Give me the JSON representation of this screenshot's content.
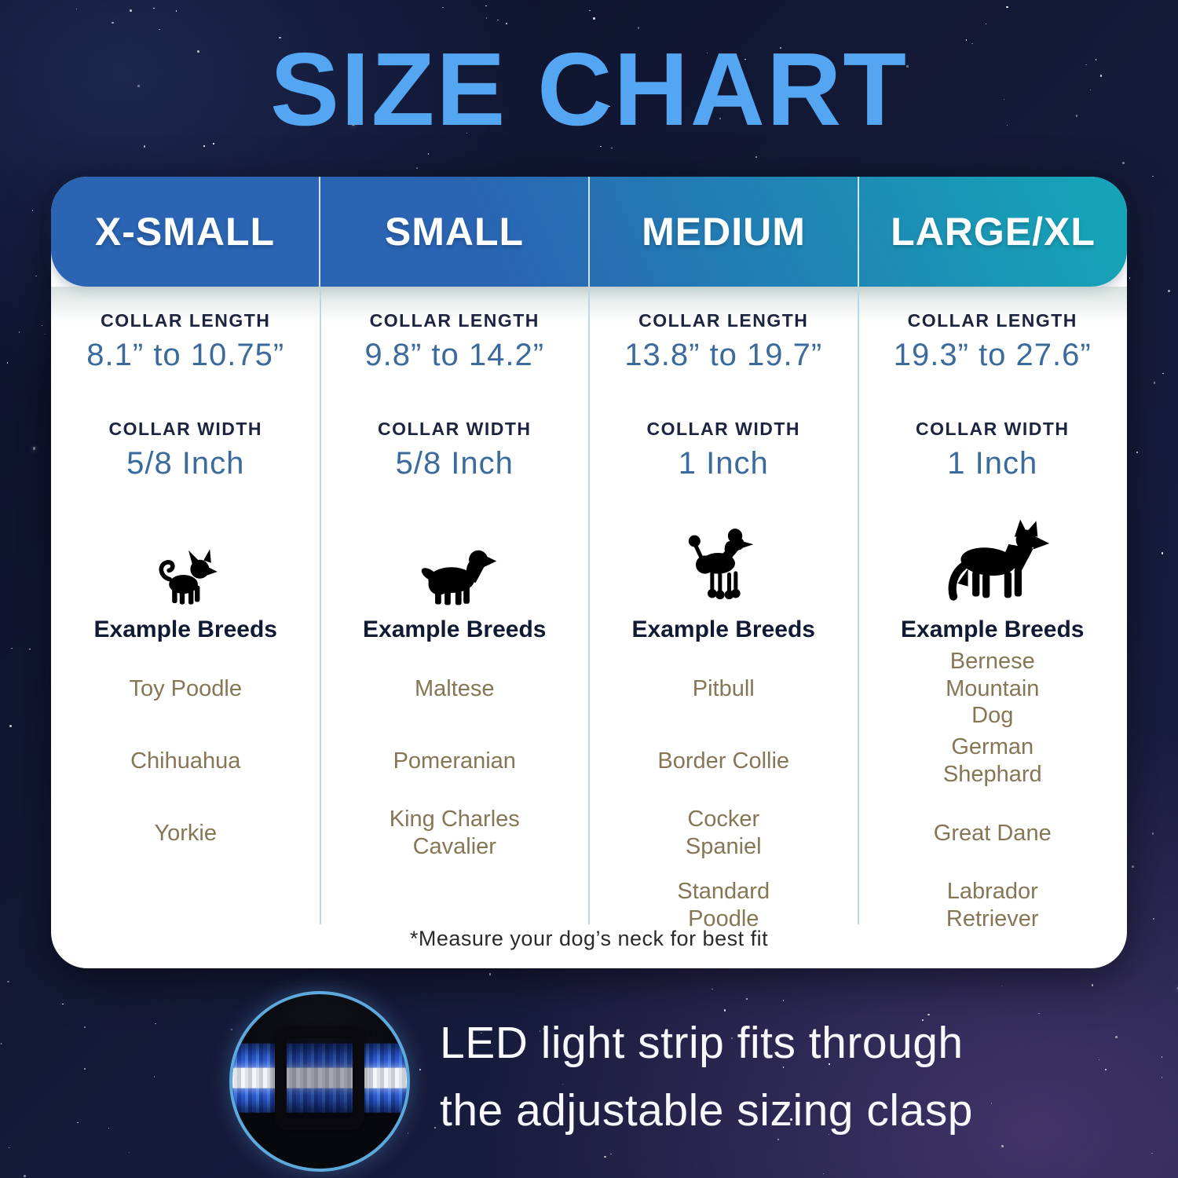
{
  "page_title": "SIZE CHART",
  "size_chart": {
    "labels": {
      "collar_length": "COLLAR LENGTH",
      "collar_width": "COLLAR WIDTH",
      "example_breeds": "Example Breeds"
    },
    "columns": [
      {
        "size": "X-SMALL",
        "collar_length": "8.1” to 10.75”",
        "collar_width": "5/8 Inch",
        "icon": "chihuahua",
        "breeds": [
          "Toy Poodle",
          "Chihuahua",
          "Yorkie"
        ]
      },
      {
        "size": "SMALL",
        "collar_length": "9.8” to 14.2”",
        "collar_width": "5/8 Inch",
        "icon": "cavalier-king-charles-spaniel",
        "breeds": [
          "Maltese",
          "Pomeranian",
          "King Charles Cavalier"
        ]
      },
      {
        "size": "MEDIUM",
        "collar_length": "13.8” to 19.7”",
        "collar_width": "1 Inch",
        "icon": "standard-poodle",
        "breeds": [
          "Pitbull",
          "Border Collie",
          "Cocker Spaniel",
          "Standard Poodle"
        ]
      },
      {
        "size": "LARGE/XL",
        "collar_length": "19.3” to 27.6”",
        "collar_width": "1 Inch",
        "icon": "german-shepherd",
        "breeds": [
          "Bernese Mountain Dog",
          "German Shephard",
          "Great Dane",
          "Labrador Retriever"
        ]
      }
    ],
    "footnote": "*Measure your dog’s neck for best fit"
  },
  "callout": {
    "line1": "LED light strip fits through",
    "line2": "the adjustable sizing clasp",
    "image_description": "close-up of blue collar with white LED strip through black sizing clasp"
  },
  "colors": {
    "title_blue": "#55a6f2",
    "header_gradient_blue": "#2a64b2",
    "header_gradient_teal": "#16a3b7",
    "value_blue": "#3b6b9d",
    "breed_text": "#857655",
    "label_navy": "#1c2440",
    "circle_border": "#5ea9dc",
    "collar_blue": "#2a57cf"
  }
}
